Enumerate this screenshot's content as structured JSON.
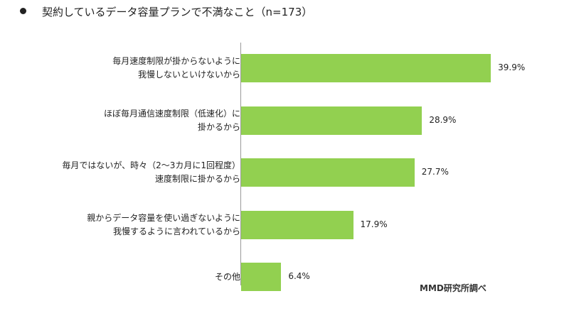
{
  "title": "契約しているデータ容量プランで不満なこと（n=173）",
  "source": "MMD研究所調べ",
  "chart_data": {
    "type": "bar",
    "orientation": "horizontal",
    "title": "契約しているデータ容量プランで不満なこと（n=173）",
    "unit": "%",
    "xlim": [
      0,
      40
    ],
    "grid": false,
    "color": "#92d050",
    "categories": [
      [
        "毎月速度制限が掛からないように",
        "我慢しないといけないから"
      ],
      [
        "ほぼ毎月通信速度制限（低速化）に",
        "掛かるから"
      ],
      [
        "毎月ではないが、時々（2～3カ月に1回程度）",
        "速度制限に掛かるから"
      ],
      [
        "親からデータ容量を使い過ぎないように",
        "我慢するように言われているから"
      ],
      [
        "その他"
      ]
    ],
    "values": [
      39.9,
      28.9,
      27.7,
      17.9,
      6.4
    ],
    "value_labels": [
      "39.9%",
      "28.9%",
      "27.7%",
      "17.9%",
      "6.4%"
    ]
  }
}
